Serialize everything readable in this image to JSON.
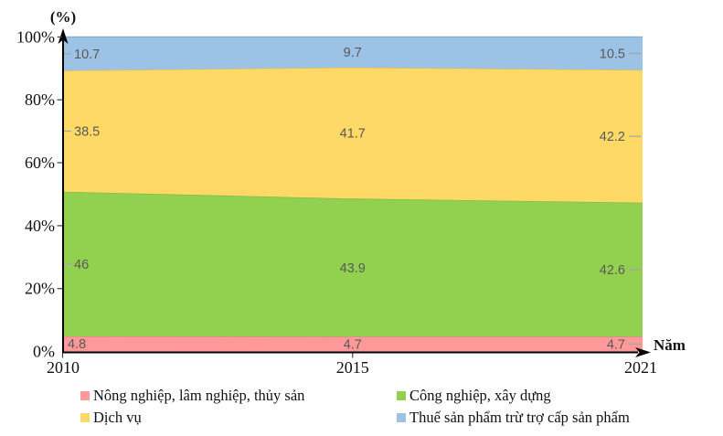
{
  "chart_data": {
    "type": "area",
    "stacked": "percent",
    "title": "(%)",
    "xlabel": "Năm",
    "categories": [
      "2010",
      "2015",
      "2021"
    ],
    "series": [
      {
        "name": "Nông nghiệp, lâm nghiệp, thủy sản",
        "color": "#FF9999",
        "values": [
          4.8,
          4.7,
          4.7
        ]
      },
      {
        "name": "Công nghiệp, xây dựng",
        "color": "#92D050",
        "values": [
          46,
          43.9,
          42.6
        ]
      },
      {
        "name": "Dịch vụ",
        "color": "#FFD966",
        "values": [
          38.5,
          41.7,
          42.2
        ]
      },
      {
        "name": "Thuế sản phẩm trừ trợ cấp sản phẩm",
        "color": "#9CC2E5",
        "values": [
          10.7,
          9.7,
          10.5
        ]
      }
    ],
    "y_ticks": [
      "0%",
      "20%",
      "40%",
      "60%",
      "80%",
      "100%"
    ],
    "ylim": [
      0,
      100
    ],
    "grid": false,
    "legend_position": "bottom",
    "data_label_color": "#595959",
    "leader_line_color": "#a6a6a6"
  }
}
